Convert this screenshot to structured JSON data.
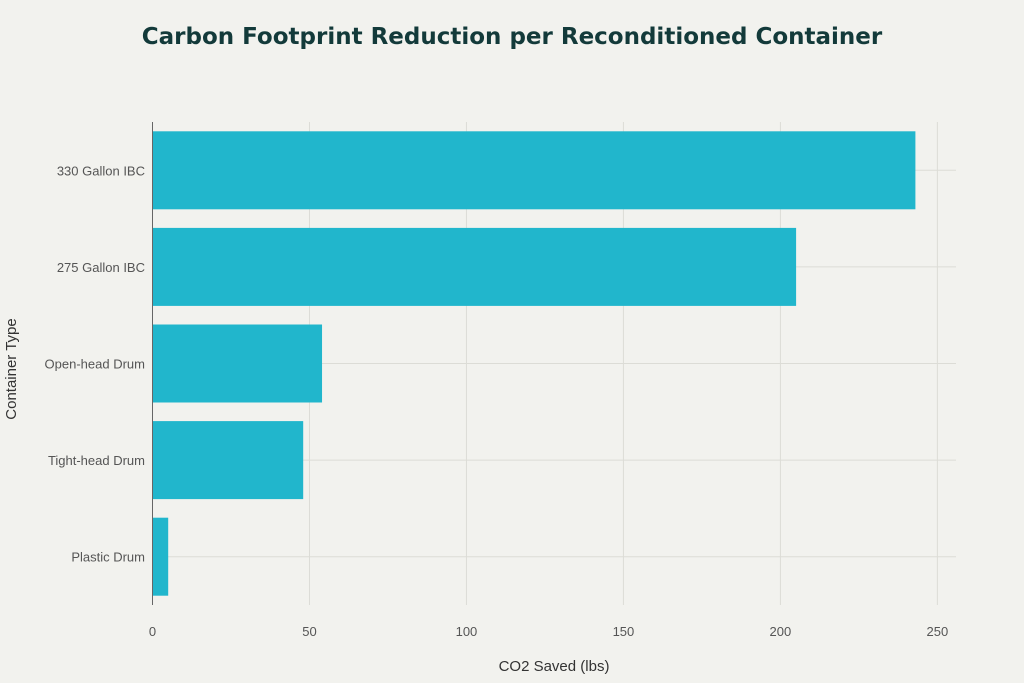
{
  "chart_data": {
    "type": "bar",
    "orientation": "horizontal",
    "title": "Carbon Footprint Reduction per Reconditioned Container",
    "xlabel": "CO2 Saved (lbs)",
    "ylabel": "Container Type",
    "categories": [
      "330 Gallon IBC",
      "275 Gallon IBC",
      "Open-head Drum",
      "Tight-head Drum",
      "Plastic Drum"
    ],
    "values": [
      243,
      205,
      54,
      48,
      5
    ],
    "xlim": [
      0,
      256
    ],
    "xticks": [
      0,
      50,
      100,
      150,
      200,
      250
    ],
    "grid": true,
    "bar_color": "#21b6cc"
  }
}
